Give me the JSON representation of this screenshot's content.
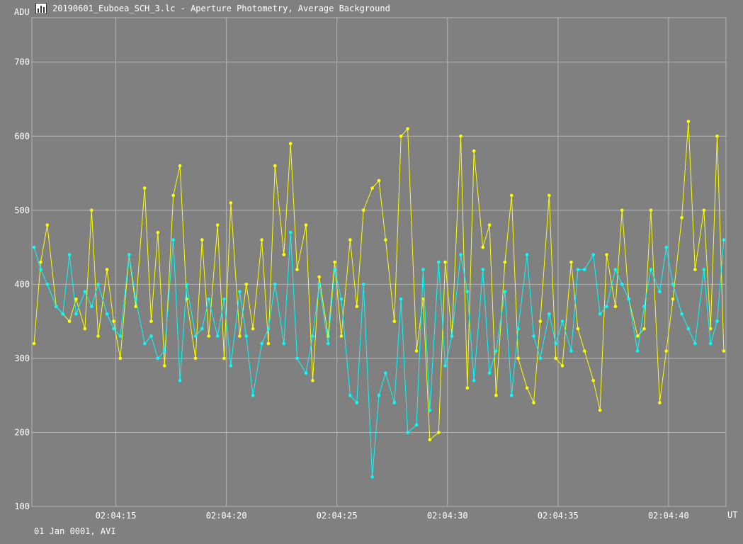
{
  "window": {
    "title": "20190601_Euboea_SCH_3.lc - Aperture Photometry, Average Background",
    "icon": "lightcurve-app-icon"
  },
  "footer": "01 Jan 0001, AVI",
  "colors": {
    "background": "#808080",
    "grid": "#b4b4b4",
    "series1": "#ffff00",
    "series2": "#00ffff",
    "text": "#ffffff"
  },
  "chart_data": {
    "type": "line",
    "ylabel": "ADU",
    "xlabel": "UT",
    "ylim": [
      100,
      760
    ],
    "xlim": [
      11.2,
      42.6
    ],
    "grid": true,
    "y_ticks": [
      {
        "value": 100,
        "label": "100"
      },
      {
        "value": 200,
        "label": "200"
      },
      {
        "value": 300,
        "label": "300"
      },
      {
        "value": 400,
        "label": "400"
      },
      {
        "value": 500,
        "label": "500"
      },
      {
        "value": 600,
        "label": "600"
      },
      {
        "value": 700,
        "label": "700"
      }
    ],
    "x_ticks": [
      {
        "value": 15,
        "label": "02:04:15"
      },
      {
        "value": 20,
        "label": "02:04:20"
      },
      {
        "value": 25,
        "label": "02:04:25"
      },
      {
        "value": 30,
        "label": "02:04:30"
      },
      {
        "value": 35,
        "label": "02:04:35"
      },
      {
        "value": 40,
        "label": "02:04:40"
      }
    ],
    "series": [
      {
        "color": "#ffff00",
        "x": [
          11.3,
          11.6,
          11.9,
          12.3,
          12.6,
          12.9,
          13.2,
          13.6,
          13.9,
          14.2,
          14.6,
          14.9,
          15.2,
          15.6,
          15.9,
          16.3,
          16.6,
          16.9,
          17.2,
          17.6,
          17.9,
          18.2,
          18.6,
          18.9,
          19.2,
          19.6,
          19.9,
          20.2,
          20.6,
          20.9,
          21.2,
          21.6,
          21.9,
          22.2,
          22.6,
          22.9,
          23.2,
          23.6,
          23.9,
          24.2,
          24.6,
          24.9,
          25.2,
          25.6,
          25.9,
          26.2,
          26.6,
          26.9,
          27.2,
          27.6,
          27.9,
          28.2,
          28.6,
          28.9,
          29.2,
          29.6,
          29.9,
          30.2,
          30.6,
          30.9,
          31.2,
          31.6,
          31.9,
          32.2,
          32.6,
          32.9,
          33.2,
          33.6,
          33.9,
          34.2,
          34.6,
          34.9,
          35.2,
          35.6,
          35.9,
          36.2,
          36.6,
          36.9,
          37.2,
          37.6,
          37.9,
          38.2,
          38.6,
          38.9,
          39.2,
          39.6,
          39.9,
          40.2,
          40.6,
          40.9,
          41.2,
          41.6,
          41.9,
          42.2,
          42.5
        ],
        "values": [
          320,
          430,
          480,
          370,
          360,
          350,
          380,
          340,
          500,
          330,
          420,
          350,
          300,
          440,
          370,
          530,
          350,
          470,
          290,
          520,
          560,
          380,
          300,
          460,
          330,
          480,
          300,
          510,
          330,
          400,
          340,
          460,
          320,
          560,
          440,
          590,
          420,
          480,
          270,
          410,
          330,
          430,
          330,
          460,
          370,
          500,
          530,
          540,
          460,
          350,
          600,
          610,
          310,
          380,
          190,
          200,
          430,
          330,
          600,
          260,
          580,
          450,
          480,
          250,
          430,
          520,
          300,
          260,
          240,
          350,
          520,
          300,
          290,
          430,
          340,
          310,
          270,
          230,
          440,
          370,
          500,
          380,
          330,
          340,
          500,
          240,
          310,
          380,
          490,
          620,
          420,
          500,
          340,
          600,
          310
        ]
      },
      {
        "color": "#00ffff",
        "x": [
          11.3,
          11.6,
          11.9,
          12.3,
          12.6,
          12.9,
          13.2,
          13.6,
          13.9,
          14.2,
          14.6,
          14.9,
          15.2,
          15.6,
          15.9,
          16.3,
          16.6,
          16.9,
          17.2,
          17.6,
          17.9,
          18.2,
          18.6,
          18.9,
          19.2,
          19.6,
          19.9,
          20.2,
          20.6,
          20.9,
          21.2,
          21.6,
          21.9,
          22.2,
          22.6,
          22.9,
          23.2,
          23.6,
          23.9,
          24.2,
          24.6,
          24.9,
          25.2,
          25.6,
          25.9,
          26.2,
          26.6,
          26.9,
          27.2,
          27.6,
          27.9,
          28.2,
          28.6,
          28.9,
          29.2,
          29.6,
          29.9,
          30.2,
          30.6,
          30.9,
          31.2,
          31.6,
          31.9,
          32.2,
          32.6,
          32.9,
          33.2,
          33.6,
          33.9,
          34.2,
          34.6,
          34.9,
          35.2,
          35.6,
          35.9,
          36.2,
          36.6,
          36.9,
          37.2,
          37.6,
          37.9,
          38.2,
          38.6,
          38.9,
          39.2,
          39.6,
          39.9,
          40.2,
          40.6,
          40.9,
          41.2,
          41.6,
          41.9,
          42.2,
          42.5
        ],
        "values": [
          450,
          420,
          400,
          370,
          360,
          440,
          360,
          390,
          370,
          400,
          360,
          340,
          330,
          440,
          380,
          320,
          330,
          300,
          310,
          460,
          270,
          400,
          330,
          340,
          380,
          330,
          380,
          290,
          390,
          330,
          250,
          320,
          340,
          400,
          320,
          470,
          300,
          280,
          330,
          400,
          320,
          420,
          380,
          250,
          240,
          400,
          140,
          250,
          280,
          240,
          380,
          200,
          210,
          420,
          230,
          430,
          290,
          330,
          440,
          390,
          270,
          420,
          280,
          310,
          390,
          250,
          340,
          440,
          330,
          300,
          360,
          320,
          350,
          310,
          420,
          420,
          440,
          360,
          370,
          420,
          400,
          380,
          310,
          370,
          420,
          390,
          450,
          400,
          360,
          340,
          320,
          420,
          320,
          350,
          460
        ]
      }
    ]
  }
}
